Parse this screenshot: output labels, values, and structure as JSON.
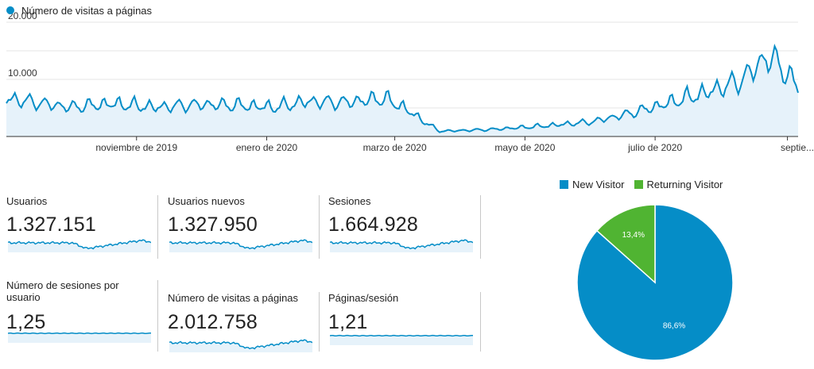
{
  "colors": {
    "series": "#058dc7",
    "series_fill": "#e6f2fa",
    "new": "#058dc7",
    "returning": "#50b432",
    "grid": "#e6e6e6"
  },
  "chart_data": [
    {
      "type": "area",
      "legend": "Número de visitas a páginas",
      "yticks": [
        "20.000",
        "10.000"
      ],
      "ylim": [
        0,
        20000
      ],
      "xticks": [
        "noviembre de 2019",
        "enero de 2020",
        "marzo de 2020",
        "mayo de 2020",
        "julio de 2020",
        "septie..."
      ],
      "date_range": [
        "2019-09-01",
        "2020-09-06"
      ],
      "anchors": [
        [
          "2019-09-01",
          6500
        ],
        [
          "2019-10-01",
          5000
        ],
        [
          "2019-10-20",
          5600
        ],
        [
          "2019-11-10",
          5000
        ],
        [
          "2019-12-01",
          5500
        ],
        [
          "2019-12-20",
          5300
        ],
        [
          "2020-01-05",
          5000
        ],
        [
          "2020-01-20",
          6000
        ],
        [
          "2020-02-05",
          5800
        ],
        [
          "2020-02-25",
          6500
        ],
        [
          "2020-03-05",
          5000
        ],
        [
          "2020-03-15",
          2500
        ],
        [
          "2020-03-22",
          900
        ],
        [
          "2020-04-15",
          1200
        ],
        [
          "2020-05-10",
          1800
        ],
        [
          "2020-06-01",
          2500
        ],
        [
          "2020-06-20",
          4000
        ],
        [
          "2020-07-10",
          6000
        ],
        [
          "2020-07-25",
          7500
        ],
        [
          "2020-08-10",
          9500
        ],
        [
          "2020-08-22",
          13500
        ],
        [
          "2020-08-28",
          12500
        ],
        [
          "2020-09-02",
          10000
        ],
        [
          "2020-09-06",
          8500
        ]
      ]
    },
    {
      "type": "pie",
      "legend": [
        "New Visitor",
        "Returning Visitor"
      ],
      "values": [
        86.6,
        13.4
      ],
      "labels": [
        "86,6%",
        "13,4%"
      ]
    }
  ],
  "metrics": [
    {
      "label": "Usuarios",
      "value": "1.327.151",
      "trend": "growth"
    },
    {
      "label": "Usuarios nuevos",
      "value": "1.327.950",
      "trend": "growth"
    },
    {
      "label": "Sesiones",
      "value": "1.664.928",
      "trend": "growth"
    },
    {
      "label": "Número de sesiones por usuario",
      "value": "1,25",
      "trend": "flat"
    },
    {
      "label": "Número de visitas a páginas",
      "value": "2.012.758",
      "trend": "growth"
    },
    {
      "label": "Páginas/sesión",
      "value": "1,21",
      "trend": "flat"
    }
  ]
}
